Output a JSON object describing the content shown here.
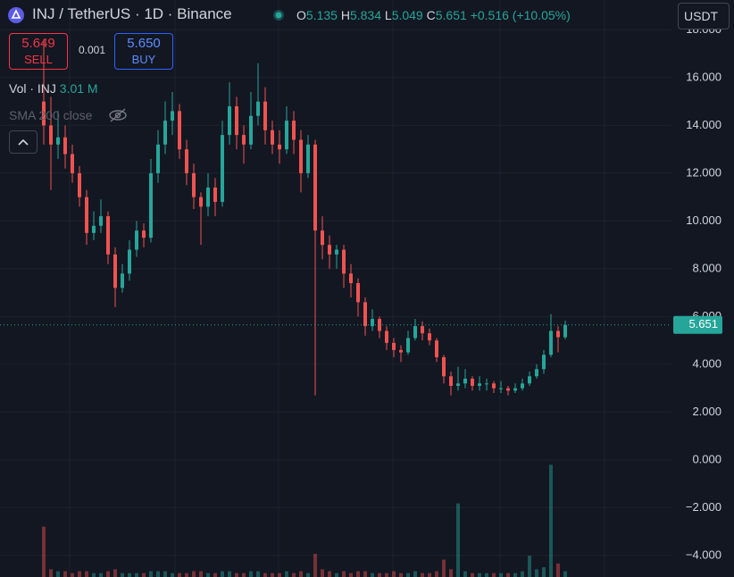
{
  "chart_data": {
    "type": "candlestick",
    "symbol": "INJ / TetherUS · 1D · Binance",
    "ohlc_labels": [
      "O",
      "H",
      "L",
      "C"
    ],
    "change": "+0.516 (+10.05%)",
    "sell_price": "5.649",
    "sell_label": "SELL",
    "spread": "0.001",
    "buy_price": "5.650",
    "buy_label": "BUY",
    "volume_title": "Vol · INJ",
    "volume_value": "3.01 M",
    "indicator": "SMA 200 close",
    "currency": "USDT",
    "up_color": "#26a69a",
    "down_color": "#ef5350",
    "grid": true,
    "ylim": [
      -4.9,
      19.25
    ],
    "yticks": [
      {
        "value": -4,
        "label": "−4.000"
      },
      {
        "value": -2,
        "label": "−2.000"
      },
      {
        "value": 0,
        "label": "0.000"
      },
      {
        "value": 2,
        "label": "2.000"
      },
      {
        "value": 4,
        "label": "4.000"
      },
      {
        "value": 6,
        "label": "6.000"
      },
      {
        "value": 8,
        "label": "8.000"
      },
      {
        "value": 10,
        "label": "10.000"
      },
      {
        "value": 12,
        "label": "12.000"
      },
      {
        "value": 14,
        "label": "14.000"
      },
      {
        "value": 16,
        "label": "16.000"
      },
      {
        "value": 18,
        "label": "18.000"
      }
    ],
    "volume_lim": [
      0,
      60
    ],
    "candles": [
      [
        15.0,
        17.6,
        13.2,
        14.0
      ],
      [
        14.0,
        15.2,
        11.3,
        13.2
      ],
      [
        13.2,
        14.6,
        12.6,
        13.5
      ],
      [
        13.5,
        14.0,
        12.2,
        12.8
      ],
      [
        12.8,
        13.2,
        11.6,
        12.0
      ],
      [
        12.0,
        12.3,
        10.6,
        11.0
      ],
      [
        11.0,
        11.3,
        9.0,
        9.5
      ],
      [
        9.5,
        10.4,
        9.2,
        9.8
      ],
      [
        9.8,
        10.9,
        9.5,
        10.2
      ],
      [
        10.2,
        10.4,
        8.2,
        8.6
      ],
      [
        8.6,
        8.9,
        6.4,
        7.2
      ],
      [
        7.2,
        8.2,
        7.0,
        7.8
      ],
      [
        7.8,
        9.2,
        7.5,
        8.8
      ],
      [
        8.8,
        10.0,
        8.5,
        9.6
      ],
      [
        9.6,
        9.9,
        8.9,
        9.3
      ],
      [
        9.3,
        12.6,
        9.1,
        12.0
      ],
      [
        12.0,
        13.8,
        11.6,
        13.2
      ],
      [
        13.2,
        15.0,
        12.8,
        14.2
      ],
      [
        14.2,
        15.4,
        13.6,
        14.6
      ],
      [
        14.6,
        14.9,
        12.6,
        13.0
      ],
      [
        13.0,
        13.4,
        11.5,
        12.0
      ],
      [
        12.0,
        12.4,
        10.5,
        11.0
      ],
      [
        11.0,
        11.2,
        9.0,
        10.6
      ],
      [
        10.6,
        12.0,
        10.2,
        11.4
      ],
      [
        11.4,
        11.8,
        10.2,
        10.8
      ],
      [
        10.8,
        14.2,
        10.6,
        13.6
      ],
      [
        13.6,
        15.8,
        13.2,
        14.8
      ],
      [
        14.8,
        15.2,
        13.0,
        13.6
      ],
      [
        13.6,
        14.0,
        12.4,
        13.2
      ],
      [
        13.2,
        15.4,
        13.0,
        14.4
      ],
      [
        14.4,
        16.6,
        14.0,
        15.0
      ],
      [
        15.0,
        15.6,
        13.2,
        13.8
      ],
      [
        13.8,
        14.2,
        12.8,
        13.2
      ],
      [
        13.2,
        13.8,
        12.4,
        13.0
      ],
      [
        13.0,
        14.8,
        12.8,
        14.2
      ],
      [
        14.2,
        14.6,
        12.8,
        13.4
      ],
      [
        13.4,
        13.8,
        11.2,
        12.0
      ],
      [
        12.0,
        13.6,
        11.8,
        13.2
      ],
      [
        13.2,
        13.4,
        2.7,
        9.6
      ],
      [
        9.6,
        10.2,
        8.4,
        9.0
      ],
      [
        9.0,
        9.4,
        8.0,
        8.6
      ],
      [
        8.6,
        9.0,
        8.0,
        8.8
      ],
      [
        8.8,
        9.0,
        7.2,
        7.8
      ],
      [
        7.8,
        8.2,
        6.8,
        7.4
      ],
      [
        7.4,
        7.6,
        6.0,
        6.6
      ],
      [
        6.6,
        6.8,
        5.2,
        5.6
      ],
      [
        5.6,
        6.3,
        5.4,
        5.9
      ],
      [
        5.9,
        6.0,
        5.1,
        5.4
      ],
      [
        5.4,
        5.6,
        4.6,
        4.9
      ],
      [
        4.9,
        5.1,
        4.3,
        4.6
      ],
      [
        4.6,
        4.8,
        4.1,
        4.5
      ],
      [
        4.5,
        5.4,
        4.4,
        5.1
      ],
      [
        5.1,
        5.9,
        5.0,
        5.6
      ],
      [
        5.6,
        5.8,
        5.0,
        5.3
      ],
      [
        5.3,
        5.5,
        4.8,
        5.0
      ],
      [
        5.0,
        5.1,
        4.1,
        4.3
      ],
      [
        4.3,
        4.4,
        3.2,
        3.5
      ],
      [
        3.5,
        3.7,
        2.7,
        3.1
      ],
      [
        3.1,
        3.9,
        2.9,
        3.2
      ],
      [
        3.2,
        3.8,
        3.0,
        3.4
      ],
      [
        3.4,
        3.5,
        2.9,
        3.1
      ],
      [
        3.1,
        3.5,
        2.9,
        3.2
      ],
      [
        3.2,
        3.4,
        2.9,
        3.2
      ],
      [
        3.2,
        3.3,
        2.8,
        3.0
      ],
      [
        3.0,
        3.3,
        2.8,
        3.0
      ],
      [
        3.0,
        3.1,
        2.7,
        2.9
      ],
      [
        2.9,
        3.2,
        2.8,
        3.0
      ],
      [
        3.0,
        3.4,
        2.9,
        3.2
      ],
      [
        3.2,
        3.7,
        3.1,
        3.5
      ],
      [
        3.5,
        4.0,
        3.4,
        3.8
      ],
      [
        3.8,
        4.6,
        3.6,
        4.4
      ],
      [
        4.4,
        6.1,
        4.3,
        5.4
      ],
      [
        5.4,
        5.6,
        4.5,
        5.135
      ],
      [
        5.135,
        5.834,
        5.049,
        5.651
      ]
    ],
    "volumes": [
      26,
      4,
      3,
      3,
      2,
      3,
      3,
      2,
      2,
      3,
      4,
      2,
      2,
      2,
      2,
      3,
      3,
      3,
      2,
      2,
      2,
      3,
      3,
      2,
      2,
      3,
      3,
      2,
      2,
      3,
      3,
      2,
      2,
      2,
      3,
      2,
      3,
      2,
      12,
      4,
      3,
      2,
      3,
      2,
      3,
      3,
      2,
      2,
      2,
      3,
      2,
      2,
      3,
      2,
      2,
      3,
      9,
      4,
      38,
      3,
      2,
      2,
      2,
      2,
      2,
      2,
      2,
      3,
      11,
      4,
      5,
      58,
      7,
      3.01
    ]
  }
}
